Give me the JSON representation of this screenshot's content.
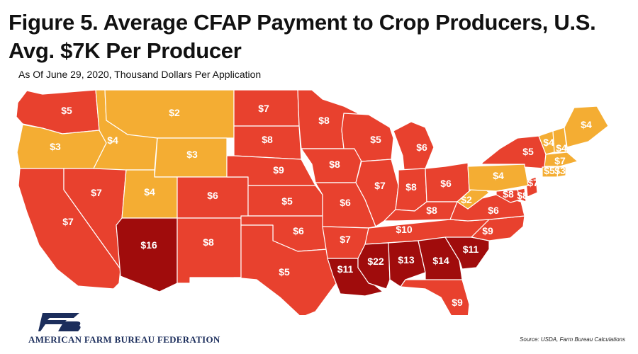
{
  "title_line1": "Figure 5. Average CFAP Payment to Crop Producers, U.S.",
  "title_line2": "Avg. $7K Per Producer",
  "subtitle": "As Of June 29, 2020, Thousand Dollars Per Application",
  "source": "Source: USDA, Farm Bureau Calculations",
  "logo": {
    "name": "AMERICAN FARM BUREAU FEDERATION",
    "icon": "fb-logo-icon"
  },
  "colors": {
    "orange": "#f4ad33",
    "red": "#e8412e",
    "darkred": "#a00c0c"
  },
  "states": [
    {
      "id": "wa",
      "label": "$5",
      "tier": "red"
    },
    {
      "id": "or",
      "label": "$3",
      "tier": "orange"
    },
    {
      "id": "ca",
      "label": "$7",
      "tier": "red"
    },
    {
      "id": "id",
      "label": "$4",
      "tier": "orange"
    },
    {
      "id": "nv",
      "label": "$7",
      "tier": "red"
    },
    {
      "id": "mt",
      "label": "$2",
      "tier": "orange"
    },
    {
      "id": "wy",
      "label": "$3",
      "tier": "orange"
    },
    {
      "id": "ut",
      "label": "$4",
      "tier": "orange"
    },
    {
      "id": "az",
      "label": "$16",
      "tier": "darkred"
    },
    {
      "id": "co",
      "label": "$6",
      "tier": "red"
    },
    {
      "id": "nm",
      "label": "$8",
      "tier": "red"
    },
    {
      "id": "nd",
      "label": "$7",
      "tier": "red"
    },
    {
      "id": "sd",
      "label": "$8",
      "tier": "red"
    },
    {
      "id": "ne",
      "label": "$9",
      "tier": "red"
    },
    {
      "id": "ks",
      "label": "$5",
      "tier": "red"
    },
    {
      "id": "ok",
      "label": "$6",
      "tier": "red"
    },
    {
      "id": "tx",
      "label": "$5",
      "tier": "red"
    },
    {
      "id": "mn",
      "label": "$8",
      "tier": "red"
    },
    {
      "id": "ia",
      "label": "$8",
      "tier": "red"
    },
    {
      "id": "mo",
      "label": "$6",
      "tier": "red"
    },
    {
      "id": "ar",
      "label": "$7",
      "tier": "red"
    },
    {
      "id": "la",
      "label": "$11",
      "tier": "darkred"
    },
    {
      "id": "wi",
      "label": "$5",
      "tier": "red"
    },
    {
      "id": "il",
      "label": "$7",
      "tier": "red"
    },
    {
      "id": "mi",
      "label": "$6",
      "tier": "red"
    },
    {
      "id": "in",
      "label": "$8",
      "tier": "red"
    },
    {
      "id": "oh",
      "label": "$6",
      "tier": "red"
    },
    {
      "id": "ky",
      "label": "$8",
      "tier": "red"
    },
    {
      "id": "tn",
      "label": "$10",
      "tier": "red"
    },
    {
      "id": "ms",
      "label": "$22",
      "tier": "darkred"
    },
    {
      "id": "al",
      "label": "$13",
      "tier": "darkred"
    },
    {
      "id": "ga",
      "label": "$14",
      "tier": "darkred"
    },
    {
      "id": "fl",
      "label": "$9",
      "tier": "red"
    },
    {
      "id": "sc",
      "label": "$11",
      "tier": "darkred"
    },
    {
      "id": "nc",
      "label": "$9",
      "tier": "red"
    },
    {
      "id": "va",
      "label": "$6",
      "tier": "red"
    },
    {
      "id": "wv",
      "label": "$2",
      "tier": "orange"
    },
    {
      "id": "md",
      "label": "$8",
      "tier": "red"
    },
    {
      "id": "de",
      "label": "$8",
      "tier": "red"
    },
    {
      "id": "nj",
      "label": "$7",
      "tier": "red"
    },
    {
      "id": "pa",
      "label": "$4",
      "tier": "orange"
    },
    {
      "id": "ny",
      "label": "$5",
      "tier": "red"
    },
    {
      "id": "vt",
      "label": "$4",
      "tier": "orange"
    },
    {
      "id": "nh",
      "label": "$4",
      "tier": "orange"
    },
    {
      "id": "me",
      "label": "$4",
      "tier": "orange"
    },
    {
      "id": "ma",
      "label": "$7",
      "tier": "orange"
    },
    {
      "id": "ct",
      "label": "$5",
      "tier": "orange"
    },
    {
      "id": "ri",
      "label": "$3",
      "tier": "orange"
    }
  ]
}
